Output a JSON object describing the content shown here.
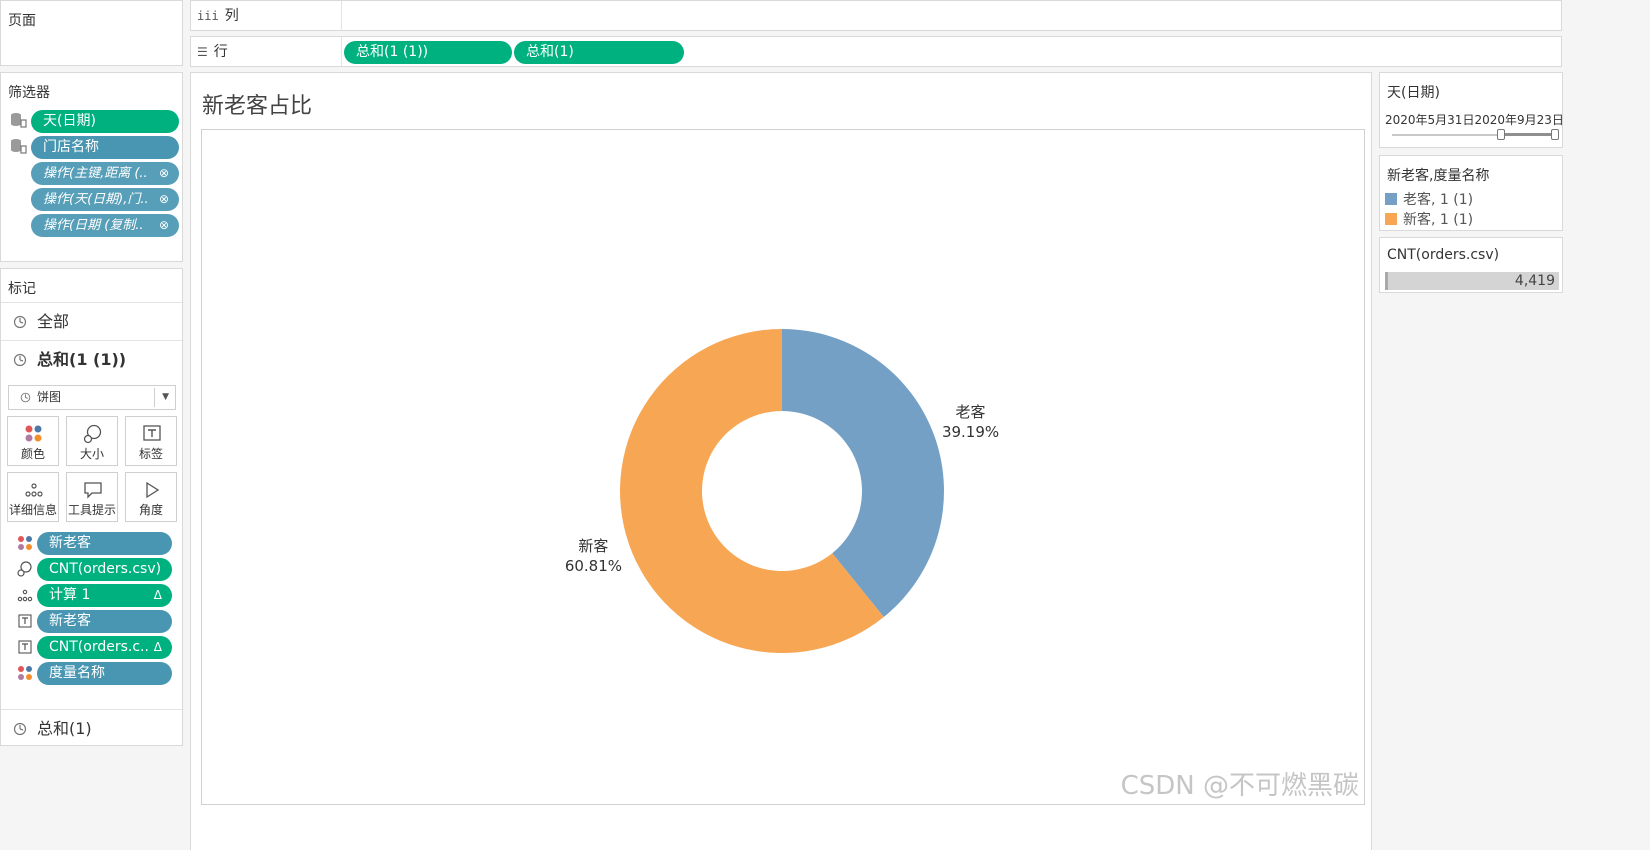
{
  "shelves": {
    "pages_label": "页面",
    "columns_label": "列",
    "columns_glyph": "iii",
    "rows_label": "行",
    "rows_glyph": "☰",
    "rows_pills": [
      "总和(1 (1))",
      "总和(1)"
    ]
  },
  "filters": {
    "title": "筛选器",
    "items": [
      {
        "label": "天(日期)",
        "style": "green",
        "icon": "database-icon"
      },
      {
        "label": "门店名称",
        "style": "blue",
        "icon": "database-icon"
      },
      {
        "label": "操作(主键,距离 (..",
        "style": "blue-italic",
        "icon": "link-icon"
      },
      {
        "label": "操作(天(日期),门..",
        "style": "blue-italic",
        "icon": "link-icon"
      },
      {
        "label": "操作(日期 (复制..",
        "style": "blue-italic",
        "icon": "link-icon"
      }
    ]
  },
  "marks": {
    "title": "标记",
    "all_label": "全部",
    "active_label": "总和(1 (1))",
    "other_label": "总和(1)",
    "mark_type": "饼图",
    "buttons": [
      "颜色",
      "大小",
      "标签",
      "详细信息",
      "工具提示",
      "角度"
    ],
    "fields": [
      {
        "label": "新老客",
        "style": "blue",
        "icon": "color-dots-icon",
        "suffix": ""
      },
      {
        "label": "CNT(orders.csv)",
        "style": "green",
        "icon": "size-icon",
        "suffix": ""
      },
      {
        "label": "计算 1",
        "style": "green",
        "icon": "detail-icon",
        "suffix": "Δ"
      },
      {
        "label": "新老客",
        "style": "blue",
        "icon": "text-label-icon",
        "suffix": ""
      },
      {
        "label": "CNT(orders.c..",
        "style": "green",
        "icon": "text-label-icon",
        "suffix": "Δ"
      },
      {
        "label": "度量名称",
        "style": "blue",
        "icon": "color-dots-icon",
        "suffix": ""
      }
    ]
  },
  "chart_data": {
    "type": "pie",
    "title": "新老客占比",
    "donut": true,
    "slices": [
      {
        "name": "老客",
        "value": 39.19,
        "label": "39.19%",
        "color": "#74a0c6"
      },
      {
        "name": "新客",
        "value": 60.81,
        "label": "60.81%",
        "color": "#f7a654"
      }
    ]
  },
  "date_filter": {
    "title": "天(日期)",
    "range_text": "2020年5月31日2020年9月23日"
  },
  "legend": {
    "title": "新老客,度量名称",
    "items": [
      {
        "label": "老客, 1 (1)",
        "color": "#74a0c6"
      },
      {
        "label": "新客, 1 (1)",
        "color": "#f7a654"
      }
    ]
  },
  "size_legend": {
    "title": "CNT(orders.csv)",
    "value": "4,419"
  },
  "watermark": "CSDN @不可燃黑碳",
  "colors": {
    "green_pill": "#00b180",
    "blue_pill": "#4996b2",
    "old_customer": "#74a0c6",
    "new_customer": "#f7a654"
  }
}
